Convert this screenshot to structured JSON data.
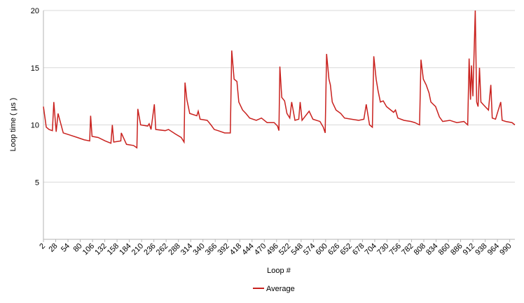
{
  "chart_data": {
    "type": "line",
    "x_label": "Loop #",
    "y_label": "Loop time ( µs )",
    "xlim": [
      2,
      1001
    ],
    "ylim": [
      0,
      20
    ],
    "xticks": [
      2,
      28,
      54,
      80,
      106,
      132,
      158,
      184,
      210,
      236,
      262,
      288,
      314,
      340,
      366,
      392,
      418,
      444,
      470,
      496,
      522,
      548,
      574,
      600,
      626,
      652,
      678,
      704,
      730,
      756,
      782,
      808,
      834,
      860,
      886,
      912,
      938,
      964,
      990
    ],
    "yticks": [
      5,
      10,
      15,
      20
    ],
    "grid": true,
    "legend": "bottom",
    "series": [
      {
        "name": "Average",
        "color": "#c9211e",
        "x": [
          2,
          8,
          14,
          21,
          24,
          29,
          33,
          44,
          59,
          74,
          88,
          100,
          102,
          105,
          118,
          133,
          145,
          148,
          151,
          166,
          167,
          178,
          193,
          200,
          202,
          208,
          223,
          226,
          230,
          237,
          240,
          260,
          267,
          282,
          294,
          300,
          302,
          306,
          312,
          327,
          330,
          334,
          349,
          357,
          364,
          372,
          386,
          398,
          401,
          406,
          412,
          416,
          424,
          431,
          439,
          453,
          464,
          476,
          491,
          498,
          501,
          503,
          507,
          513,
          518,
          524,
          528,
          535,
          543,
          546,
          550,
          565,
          573,
          588,
          595,
          599,
          602,
          607,
          610,
          614,
          622,
          632,
          640,
          655,
          670,
          681,
          686,
          693,
          699,
          702,
          707,
          711,
          716,
          722,
          729,
          744,
          748,
          753,
          766,
          781,
          789,
          799,
          802,
          807,
          813,
          819,
          823,
          833,
          841,
          848,
          863,
          878,
          893,
          901,
          904,
          907,
          909,
          912,
          917,
          920,
          923,
          926,
          929,
          938,
          945,
          950,
          953,
          960,
          971,
          974,
          982,
          995,
          1001
        ],
        "values": [
          11.6,
          9.8,
          9.6,
          9.5,
          12,
          9.4,
          11,
          9.3,
          9.1,
          8.9,
          8.7,
          8.6,
          10.8,
          9.0,
          8.9,
          8.6,
          8.4,
          10.0,
          8.5,
          8.6,
          9.3,
          8.3,
          8.2,
          8.0,
          11.4,
          10.0,
          9.9,
          10.1,
          9.6,
          11.8,
          9.6,
          9.5,
          9.6,
          9.2,
          8.9,
          8.5,
          13.7,
          12.2,
          11.0,
          10.8,
          11.2,
          10.5,
          10.4,
          10.0,
          9.6,
          9.5,
          9.3,
          9.3,
          16.5,
          14.0,
          13.8,
          12.0,
          11.3,
          11.0,
          10.6,
          10.4,
          10.6,
          10.2,
          10.2,
          9.9,
          9.5,
          15.1,
          12.4,
          12.1,
          11.0,
          10.6,
          12.0,
          10.4,
          10.5,
          12.0,
          10.4,
          11.2,
          10.5,
          10.3,
          9.8,
          9.3,
          16.2,
          14.0,
          13.5,
          12.0,
          11.3,
          11.0,
          10.6,
          10.5,
          10.4,
          10.5,
          11.8,
          10.0,
          9.8,
          16.0,
          14.0,
          13.0,
          12.0,
          12.1,
          11.6,
          11.1,
          11.3,
          10.6,
          10.4,
          10.3,
          10.2,
          10.0,
          15.7,
          14.0,
          13.5,
          12.8,
          12.0,
          11.6,
          10.7,
          10.3,
          10.4,
          10.2,
          10.3,
          10.0,
          15.8,
          12.2,
          15.2,
          12.5,
          20,
          12,
          11.6,
          15,
          12,
          11.6,
          11.3,
          13.5,
          10.6,
          10.5,
          12.0,
          10.4,
          10.3,
          10.2,
          10.0
        ]
      }
    ]
  }
}
